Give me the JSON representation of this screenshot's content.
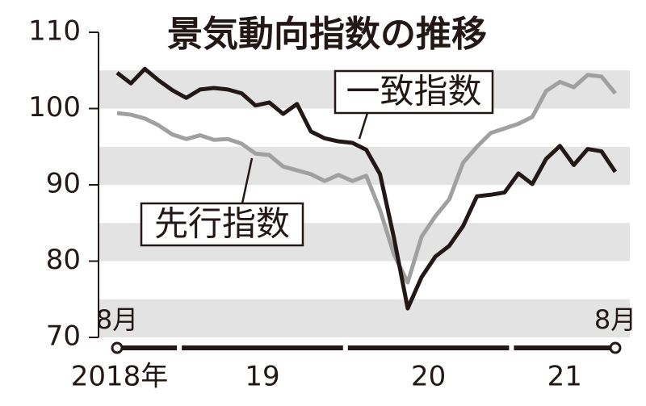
{
  "chart_data": {
    "type": "line",
    "title": "景気動向指数の推移",
    "categories": [
      "8月",
      null,
      null,
      null,
      null,
      null,
      null,
      null,
      null,
      null,
      null,
      null,
      null,
      null,
      null,
      null,
      null,
      null,
      null,
      null,
      null,
      null,
      null,
      null,
      null,
      null,
      null,
      null,
      null,
      null,
      null,
      null,
      null,
      null,
      null,
      null,
      "8月"
    ],
    "years": [
      "2018年",
      "19",
      "20",
      "21"
    ],
    "series": [
      {
        "name": "一致指数",
        "color": "#231815",
        "values": [
          104.7,
          103.3,
          105.2,
          103.7,
          102.4,
          101.4,
          102.5,
          102.7,
          102.5,
          102.0,
          100.4,
          100.8,
          99.3,
          100.6,
          97.0,
          96.1,
          95.7,
          95.5,
          94.6,
          91.4,
          83.1,
          73.8,
          77.9,
          80.6,
          82.0,
          84.6,
          88.5,
          88.7,
          89.0,
          91.5,
          90.1,
          93.4,
          95.1,
          92.6,
          94.7,
          94.4,
          91.7
        ]
      },
      {
        "name": "先行指数",
        "color": "#a0a0a0",
        "values": [
          99.4,
          99.2,
          98.7,
          97.8,
          96.6,
          96.0,
          96.5,
          95.9,
          96.0,
          95.4,
          94.1,
          93.9,
          92.4,
          91.9,
          91.4,
          90.5,
          91.3,
          90.5,
          91.2,
          86.7,
          80.9,
          77.2,
          83.2,
          85.9,
          88.1,
          92.9,
          95.0,
          96.8,
          97.4,
          98.0,
          98.9,
          102.3,
          103.5,
          102.8,
          104.4,
          104.2,
          102.0
        ]
      }
    ],
    "ylim": [
      70,
      110
    ],
    "yticks": [
      70,
      80,
      90,
      100,
      110
    ],
    "bands": [
      [
        70,
        75
      ],
      [
        80,
        85
      ],
      [
        90,
        95
      ],
      [
        100,
        105
      ]
    ],
    "band_color": "#e3e3e3"
  }
}
